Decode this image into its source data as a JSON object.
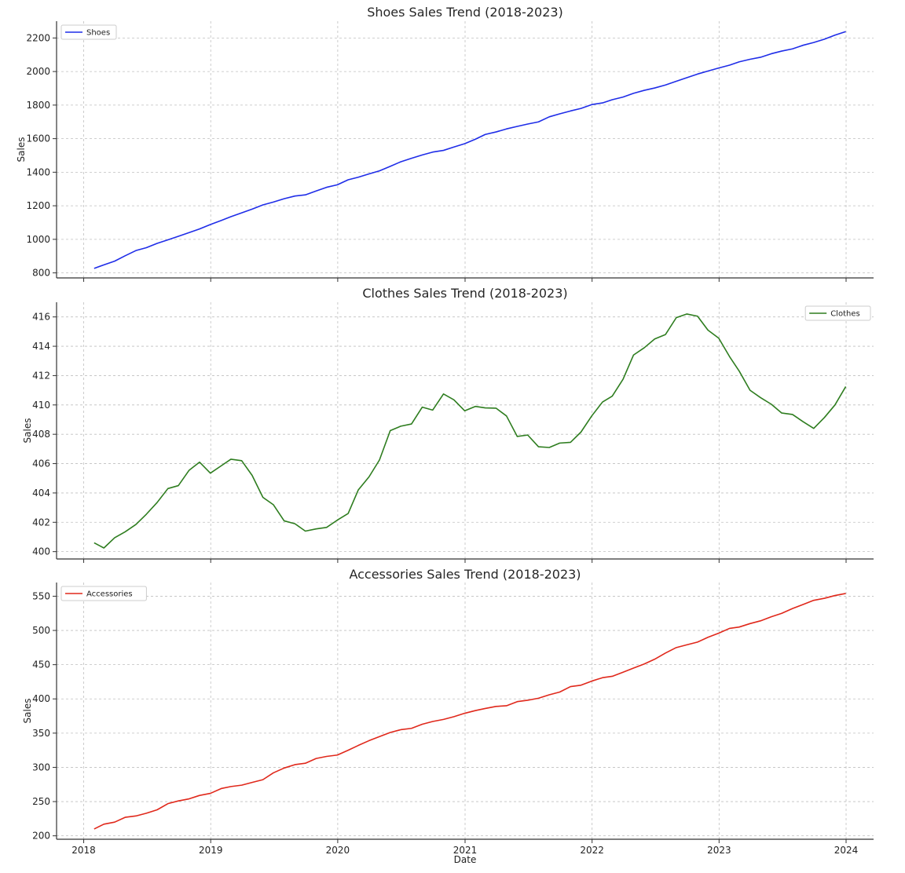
{
  "chart_data": [
    {
      "type": "line",
      "title": "Shoes Sales Trend (2018-2023)",
      "xlabel": "",
      "ylabel": "Sales",
      "ylim": [
        770,
        2300
      ],
      "yticks": [
        800,
        1000,
        1200,
        1400,
        1600,
        1800,
        2000,
        2200
      ],
      "legend_position": "top-left",
      "grid": true,
      "series": [
        {
          "name": "Shoes",
          "color": "#1f2de8",
          "x": [
            "2018-01-31",
            "2018-02-28",
            "2018-03-31",
            "2018-04-30",
            "2018-05-31",
            "2018-06-30",
            "2018-07-31",
            "2018-08-31",
            "2018-09-30",
            "2018-10-31",
            "2018-11-30",
            "2018-12-31",
            "2019-01-31",
            "2019-02-28",
            "2019-03-31",
            "2019-04-30",
            "2019-05-31",
            "2019-06-30",
            "2019-07-31",
            "2019-08-31",
            "2019-09-30",
            "2019-10-31",
            "2019-11-30",
            "2019-12-31",
            "2020-01-31",
            "2020-02-29",
            "2020-03-31",
            "2020-04-30",
            "2020-05-31",
            "2020-06-30",
            "2020-07-31",
            "2020-08-31",
            "2020-09-30",
            "2020-10-31",
            "2020-11-30",
            "2020-12-31",
            "2021-01-31",
            "2021-02-28",
            "2021-03-31",
            "2021-04-30",
            "2021-05-31",
            "2021-06-30",
            "2021-07-31",
            "2021-08-31",
            "2021-09-30",
            "2021-10-31",
            "2021-11-30",
            "2021-12-31",
            "2022-01-31",
            "2022-02-28",
            "2022-03-31",
            "2022-04-30",
            "2022-05-31",
            "2022-06-30",
            "2022-07-31",
            "2022-08-31",
            "2022-09-30",
            "2022-10-31",
            "2022-11-30",
            "2022-12-31",
            "2023-01-31",
            "2023-02-28",
            "2023-03-31",
            "2023-04-30",
            "2023-05-31",
            "2023-06-30",
            "2023-07-31",
            "2023-08-31",
            "2023-09-30",
            "2023-10-31",
            "2023-11-30",
            "2023-12-31"
          ],
          "values": [
            827,
            848,
            870,
            902,
            933,
            950,
            976,
            997,
            1018,
            1040,
            1062,
            1088,
            1112,
            1135,
            1158,
            1180,
            1205,
            1222,
            1242,
            1258,
            1265,
            1288,
            1310,
            1325,
            1355,
            1370,
            1390,
            1408,
            1435,
            1462,
            1483,
            1503,
            1520,
            1530,
            1550,
            1570,
            1597,
            1625,
            1640,
            1658,
            1673,
            1687,
            1700,
            1730,
            1748,
            1765,
            1780,
            1803,
            1813,
            1832,
            1848,
            1870,
            1888,
            1902,
            1920,
            1942,
            1963,
            1985,
            2003,
            2021,
            2038,
            2058,
            2073,
            2085,
            2106,
            2122,
            2135,
            2157,
            2173,
            2193,
            2217,
            2238
          ]
        }
      ]
    },
    {
      "type": "line",
      "title": "Clothes Sales Trend (2018-2023)",
      "xlabel": "",
      "ylabel": "Sales",
      "ylim": [
        399.5,
        417.0
      ],
      "yticks": [
        400,
        402,
        404,
        406,
        408,
        410,
        412,
        414,
        416
      ],
      "legend_position": "top-right",
      "grid": true,
      "series": [
        {
          "name": "Clothes",
          "color": "#2e7d1f",
          "x": [
            "2018-01-31",
            "2018-02-28",
            "2018-03-31",
            "2018-04-30",
            "2018-05-31",
            "2018-06-30",
            "2018-07-31",
            "2018-08-31",
            "2018-09-30",
            "2018-10-31",
            "2018-11-30",
            "2018-12-31",
            "2019-01-31",
            "2019-02-28",
            "2019-03-31",
            "2019-04-30",
            "2019-05-31",
            "2019-06-30",
            "2019-07-31",
            "2019-08-31",
            "2019-09-30",
            "2019-10-31",
            "2019-11-30",
            "2019-12-31",
            "2020-01-31",
            "2020-02-29",
            "2020-03-31",
            "2020-04-30",
            "2020-05-31",
            "2020-06-30",
            "2020-07-31",
            "2020-08-31",
            "2020-09-30",
            "2020-10-31",
            "2020-11-30",
            "2020-12-31",
            "2021-01-31",
            "2021-02-28",
            "2021-03-31",
            "2021-04-30",
            "2021-05-31",
            "2021-06-30",
            "2021-07-31",
            "2021-08-31",
            "2021-09-30",
            "2021-10-31",
            "2021-11-30",
            "2021-12-31",
            "2022-01-31",
            "2022-02-28",
            "2022-03-31",
            "2022-04-30",
            "2022-05-31",
            "2022-06-30",
            "2022-07-31",
            "2022-08-31",
            "2022-09-30",
            "2022-10-31",
            "2022-11-30",
            "2022-12-31",
            "2023-01-31",
            "2023-02-28",
            "2023-03-31",
            "2023-04-30",
            "2023-05-31",
            "2023-06-30",
            "2023-07-31",
            "2023-08-31",
            "2023-09-30",
            "2023-10-31",
            "2023-11-30",
            "2023-12-31"
          ],
          "values": [
            400.6,
            400.25,
            400.95,
            401.35,
            401.85,
            402.55,
            403.35,
            404.3,
            404.5,
            405.55,
            406.1,
            405.35,
            405.85,
            406.3,
            406.2,
            405.2,
            403.7,
            403.2,
            402.1,
            401.9,
            401.4,
            401.55,
            401.65,
            402.15,
            402.6,
            404.2,
            405.1,
            406.25,
            408.25,
            408.55,
            408.7,
            409.85,
            409.65,
            410.75,
            410.35,
            409.6,
            409.9,
            409.8,
            409.78,
            409.25,
            407.85,
            407.95,
            407.15,
            407.1,
            407.4,
            407.45,
            408.15,
            409.25,
            410.2,
            410.6,
            411.75,
            413.4,
            413.9,
            414.5,
            414.8,
            415.95,
            416.2,
            416.05,
            415.1,
            414.55,
            413.3,
            412.3,
            411.0,
            410.5,
            410.05,
            409.45,
            409.35,
            408.85,
            408.4,
            409.15,
            410.0,
            411.25
          ]
        }
      ]
    },
    {
      "type": "line",
      "title": "Accessories Sales Trend (2018-2023)",
      "xlabel": "Date",
      "ylabel": "Sales",
      "ylim": [
        195,
        570
      ],
      "yticks": [
        200,
        250,
        300,
        350,
        400,
        450,
        500,
        550
      ],
      "legend_position": "top-left",
      "grid": true,
      "series": [
        {
          "name": "Accessories",
          "color": "#e0281b",
          "x": [
            "2018-01-31",
            "2018-02-28",
            "2018-03-31",
            "2018-04-30",
            "2018-05-31",
            "2018-06-30",
            "2018-07-31",
            "2018-08-31",
            "2018-09-30",
            "2018-10-31",
            "2018-11-30",
            "2018-12-31",
            "2019-01-31",
            "2019-02-28",
            "2019-03-31",
            "2019-04-30",
            "2019-05-31",
            "2019-06-30",
            "2019-07-31",
            "2019-08-31",
            "2019-09-30",
            "2019-10-31",
            "2019-11-30",
            "2019-12-31",
            "2020-01-31",
            "2020-02-29",
            "2020-03-31",
            "2020-04-30",
            "2020-05-31",
            "2020-06-30",
            "2020-07-31",
            "2020-08-31",
            "2020-09-30",
            "2020-10-31",
            "2020-11-30",
            "2020-12-31",
            "2021-01-31",
            "2021-02-28",
            "2021-03-31",
            "2021-04-30",
            "2021-05-31",
            "2021-06-30",
            "2021-07-31",
            "2021-08-31",
            "2021-09-30",
            "2021-10-31",
            "2021-11-30",
            "2021-12-31",
            "2022-01-31",
            "2022-02-28",
            "2022-03-31",
            "2022-04-30",
            "2022-05-31",
            "2022-06-30",
            "2022-07-31",
            "2022-08-31",
            "2022-09-30",
            "2022-10-31",
            "2022-11-30",
            "2022-12-31",
            "2023-01-31",
            "2023-02-28",
            "2023-03-31",
            "2023-04-30",
            "2023-05-31",
            "2023-06-30",
            "2023-07-31",
            "2023-08-31",
            "2023-09-30",
            "2023-10-31",
            "2023-11-30",
            "2023-12-31"
          ],
          "values": [
            210,
            217,
            220,
            227,
            229,
            233,
            238,
            247,
            251,
            254,
            259,
            262,
            269,
            272,
            274,
            278,
            282,
            292,
            299,
            304,
            306,
            313,
            316,
            318,
            325,
            332,
            339,
            345,
            351,
            355,
            357,
            363,
            367,
            370,
            374,
            379,
            383,
            386,
            389,
            390,
            396,
            398,
            401,
            406,
            410,
            418,
            420,
            426,
            431,
            433,
            439,
            445,
            451,
            458,
            467,
            475,
            479,
            483,
            490,
            496,
            503,
            505,
            510,
            514,
            520,
            525,
            532,
            538,
            544,
            547,
            551,
            554
          ]
        }
      ]
    }
  ],
  "x_axis": {
    "ticks": [
      "2018",
      "2019",
      "2020",
      "2021",
      "2022",
      "2023",
      "2024"
    ],
    "range": [
      "2017-10-15",
      "2024-03-20"
    ]
  }
}
